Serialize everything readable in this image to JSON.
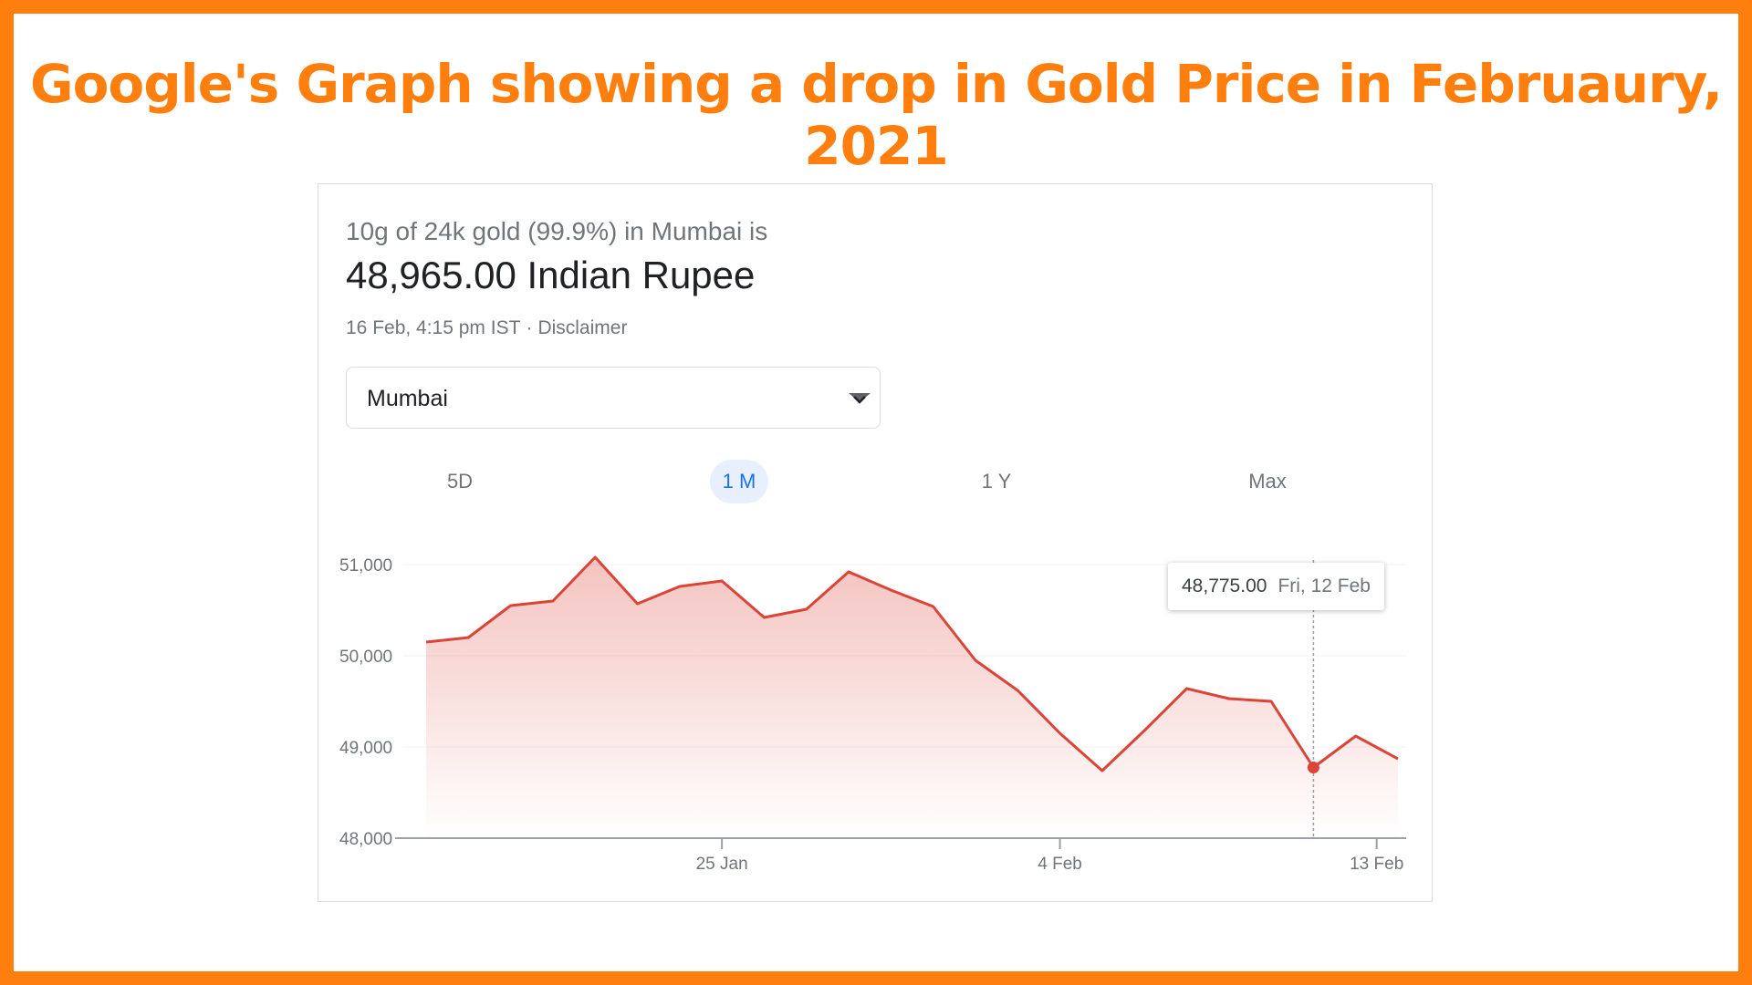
{
  "slide": {
    "title": "Google's Graph showing a drop in Gold Price in Februaury, 2021"
  },
  "colors": {
    "frame": "#ff7f0e",
    "line": "#db4437",
    "active_tab": "#1a73e8"
  },
  "card": {
    "subtitle": "10g of 24k gold (99.9%) in Mumbai is",
    "price": "48,965.00 Indian Rupee",
    "timestamp": "16 Feb, 4:15 pm IST",
    "separator": "·",
    "disclaimer": "Disclaimer",
    "city_select": {
      "value": "Mumbai",
      "icon": "chevron-down-icon"
    },
    "tabs": [
      {
        "label": "5D",
        "active": false
      },
      {
        "label": "1 M",
        "active": true
      },
      {
        "label": "1 Y",
        "active": false
      },
      {
        "label": "Max",
        "active": false
      }
    ],
    "tooltip": {
      "value": "48,775.00",
      "date": "Fri, 12 Feb"
    }
  },
  "chart_data": {
    "type": "area",
    "ylim": [
      48000,
      51100
    ],
    "yticks": [
      48000,
      49000,
      50000,
      51000
    ],
    "ytick_labels": [
      "48,000",
      "49,000",
      "50,000",
      "51,000"
    ],
    "xticks": [
      "25 Jan",
      "4 Feb",
      "13 Feb"
    ],
    "xtick_indices": [
      7,
      15,
      22
    ],
    "values": [
      50150,
      50200,
      50550,
      50600,
      51080,
      50570,
      50760,
      50820,
      50420,
      50510,
      50920,
      50720,
      50540,
      49950,
      49620,
      49150,
      48740,
      49180,
      49640,
      49530,
      49500,
      48775,
      49120,
      48870
    ],
    "highlight_index": 21
  }
}
